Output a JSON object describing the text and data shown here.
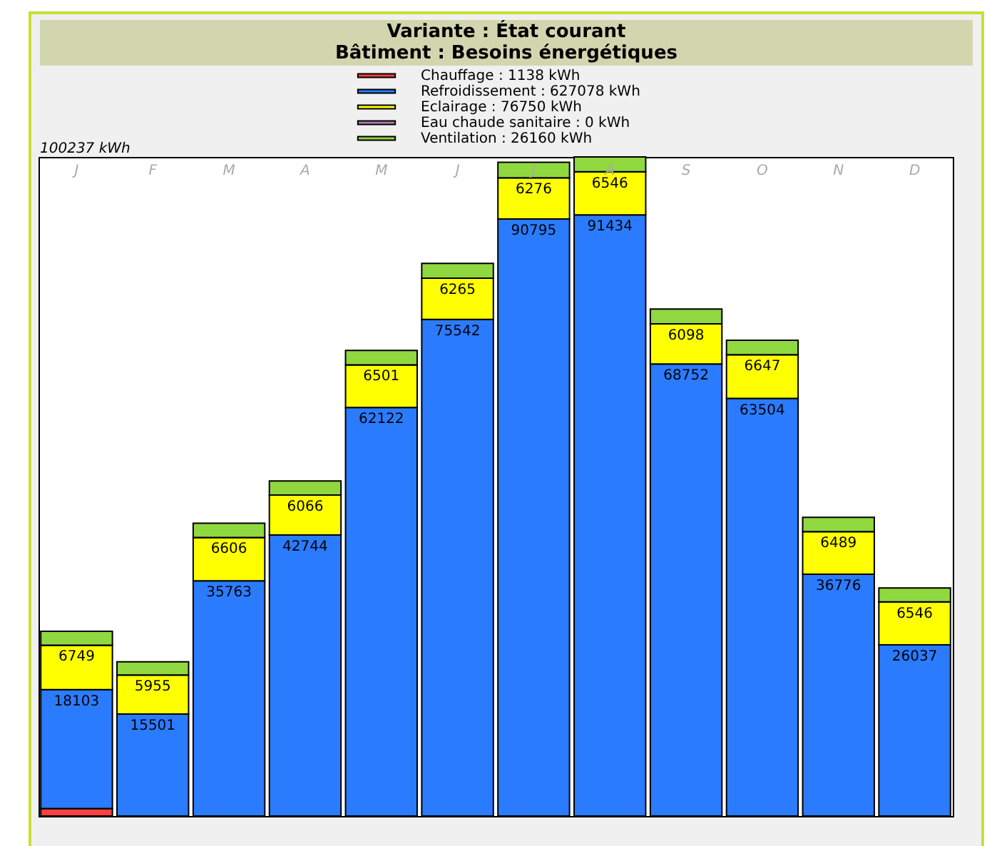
{
  "chart_data": {
    "type": "bar",
    "title": "Variante : État courant",
    "subtitle": "Bâtiment : Besoins énergétiques",
    "categories": [
      "J",
      "F",
      "M",
      "A",
      "M",
      "J",
      "J",
      "A",
      "S",
      "O",
      "N",
      "D"
    ],
    "stacked": true,
    "legend": "top",
    "grid": false,
    "ylim": [
      0,
      100237
    ],
    "annotations": [
      "100237 kWh"
    ],
    "series": [
      {
        "name": "Chauffage : 1138 kWh",
        "color": "#ff4040",
        "values": [
          1138,
          0,
          0,
          0,
          0,
          0,
          0,
          0,
          0,
          0,
          0,
          0
        ]
      },
      {
        "name": "Refroidissement : 627078 kWh",
        "color": "#2b7bff",
        "values": [
          18103,
          15501,
          35763,
          42744,
          62122,
          75542,
          90795,
          91434,
          68752,
          63504,
          36776,
          26037
        ],
        "value_labels": [
          "18103",
          "15501",
          "35763",
          "42744",
          "62122",
          "75542",
          "90795",
          "91434",
          "68752",
          "63504",
          "36776",
          "26037"
        ]
      },
      {
        "name": "Eclairage : 76750 kWh",
        "color": "#ffff00",
        "values": [
          6749,
          5955,
          6606,
          6066,
          6501,
          6265,
          6276,
          6546,
          6098,
          6647,
          6489,
          6546
        ],
        "value_labels": [
          "6749",
          "5955",
          "6606",
          "6066",
          "6501",
          "6265",
          "6276",
          "6546",
          "6098",
          "6647",
          "6489",
          "6546"
        ]
      },
      {
        "name": "Eau chaude sanitaire : 0 kWh",
        "color": "#b07cb0",
        "values": [
          0,
          0,
          0,
          0,
          0,
          0,
          0,
          0,
          0,
          0,
          0,
          0
        ]
      },
      {
        "name": "Ventilation : 26160 kWh",
        "color": "#90d840",
        "values": [
          2100,
          2000,
          2150,
          2150,
          2200,
          2250,
          2343,
          2257,
          2250,
          2200,
          2150,
          2110
        ]
      }
    ]
  }
}
